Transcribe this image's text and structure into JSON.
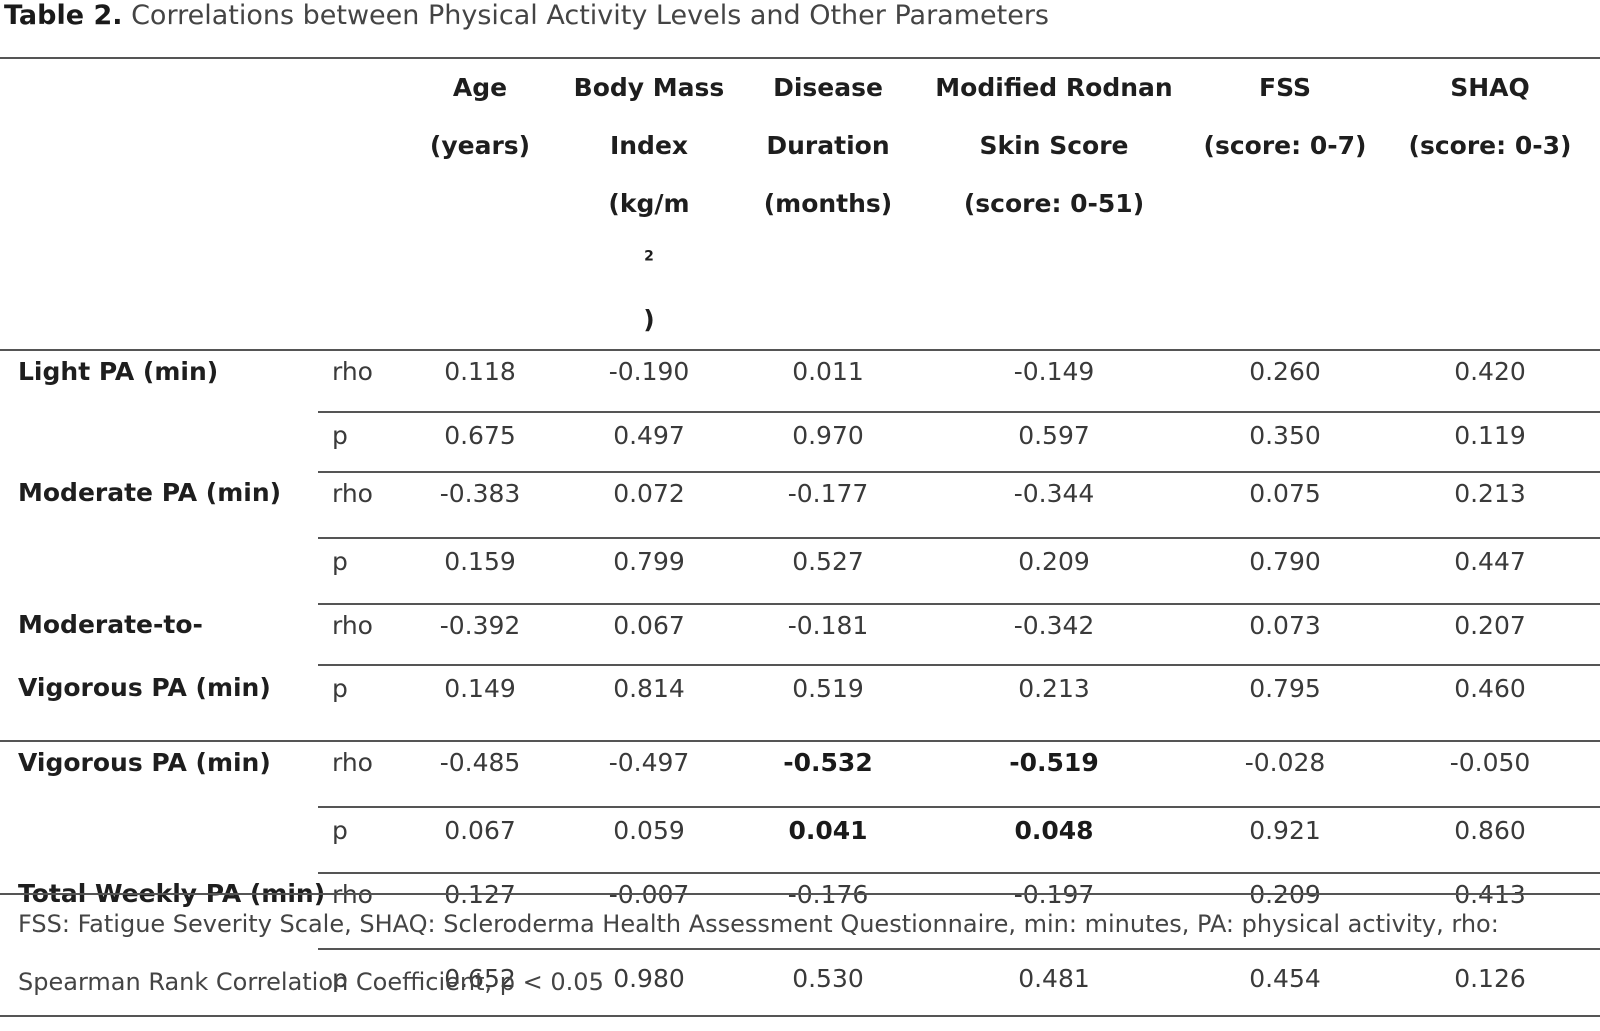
{
  "caption": {
    "label": "Table 2.",
    "text": " Correlations between Physical Activity Levels and Other Parameters"
  },
  "table": {
    "headers": [
      {
        "lines": [
          "Age",
          "(years)"
        ]
      },
      {
        "lines": [
          "Body Mass",
          "Index",
          "(kg/m",
          "2",
          ")"
        ]
      },
      {
        "lines": [
          "Disease",
          "Duration",
          "(months)"
        ]
      },
      {
        "lines": [
          "Modified Rodnan",
          "Skin Score",
          "(score: 0-51)"
        ]
      },
      {
        "lines": [
          "FSS",
          "(score: 0-7)"
        ]
      },
      {
        "lines": [
          "SHAQ",
          "(score: 0-3)"
        ]
      }
    ],
    "rows": [
      {
        "label": "Light PA (min)",
        "rho": [
          "0.118",
          "-0.190",
          "0.011",
          "-0.149",
          "0.260",
          "0.420"
        ],
        "p": [
          "0.675",
          "0.497",
          "0.970",
          "0.597",
          "0.350",
          "0.119"
        ]
      },
      {
        "label": "Moderate PA (min)",
        "rho": [
          "-0.383",
          "0.072",
          "-0.177",
          "-0.344",
          "0.075",
          "0.213"
        ],
        "p": [
          "0.159",
          "0.799",
          "0.527",
          "0.209",
          "0.790",
          "0.447"
        ]
      },
      {
        "label_line1": "Moderate-to-",
        "label_line2": "Vigorous PA (min)",
        "rho": [
          "-0.392",
          "0.067",
          "-0.181",
          "-0.342",
          "0.073",
          "0.207"
        ],
        "p": [
          "0.149",
          "0.814",
          "0.519",
          "0.213",
          "0.795",
          "0.460"
        ]
      },
      {
        "label": "Vigorous PA (min)",
        "rho": [
          "-0.485",
          "-0.497",
          "-0.532",
          "-0.519",
          "-0.028",
          "-0.050"
        ],
        "p": [
          "0.067",
          "0.059",
          "0.041",
          "0.048",
          "0.921",
          "0.860"
        ]
      },
      {
        "label": "Total Weekly PA (min)",
        "rho": [
          "0.127",
          "-0.007",
          "-0.176",
          "-0.197",
          "0.209",
          "0.413"
        ],
        "p": [
          "0.652",
          "0.980",
          "0.530",
          "0.481",
          "0.454",
          "0.126"
        ]
      }
    ],
    "stat_labels": {
      "rho": "rho",
      "p": "p"
    }
  },
  "footnote": {
    "text": "FSS: Fatigue Severity Scale, SHAQ: Scleroderma Health Assessment Questionnaire, min: minutes, PA: physical activity, rho: Spearman Rank Correlation Coefficient, p < 0.05"
  }
}
